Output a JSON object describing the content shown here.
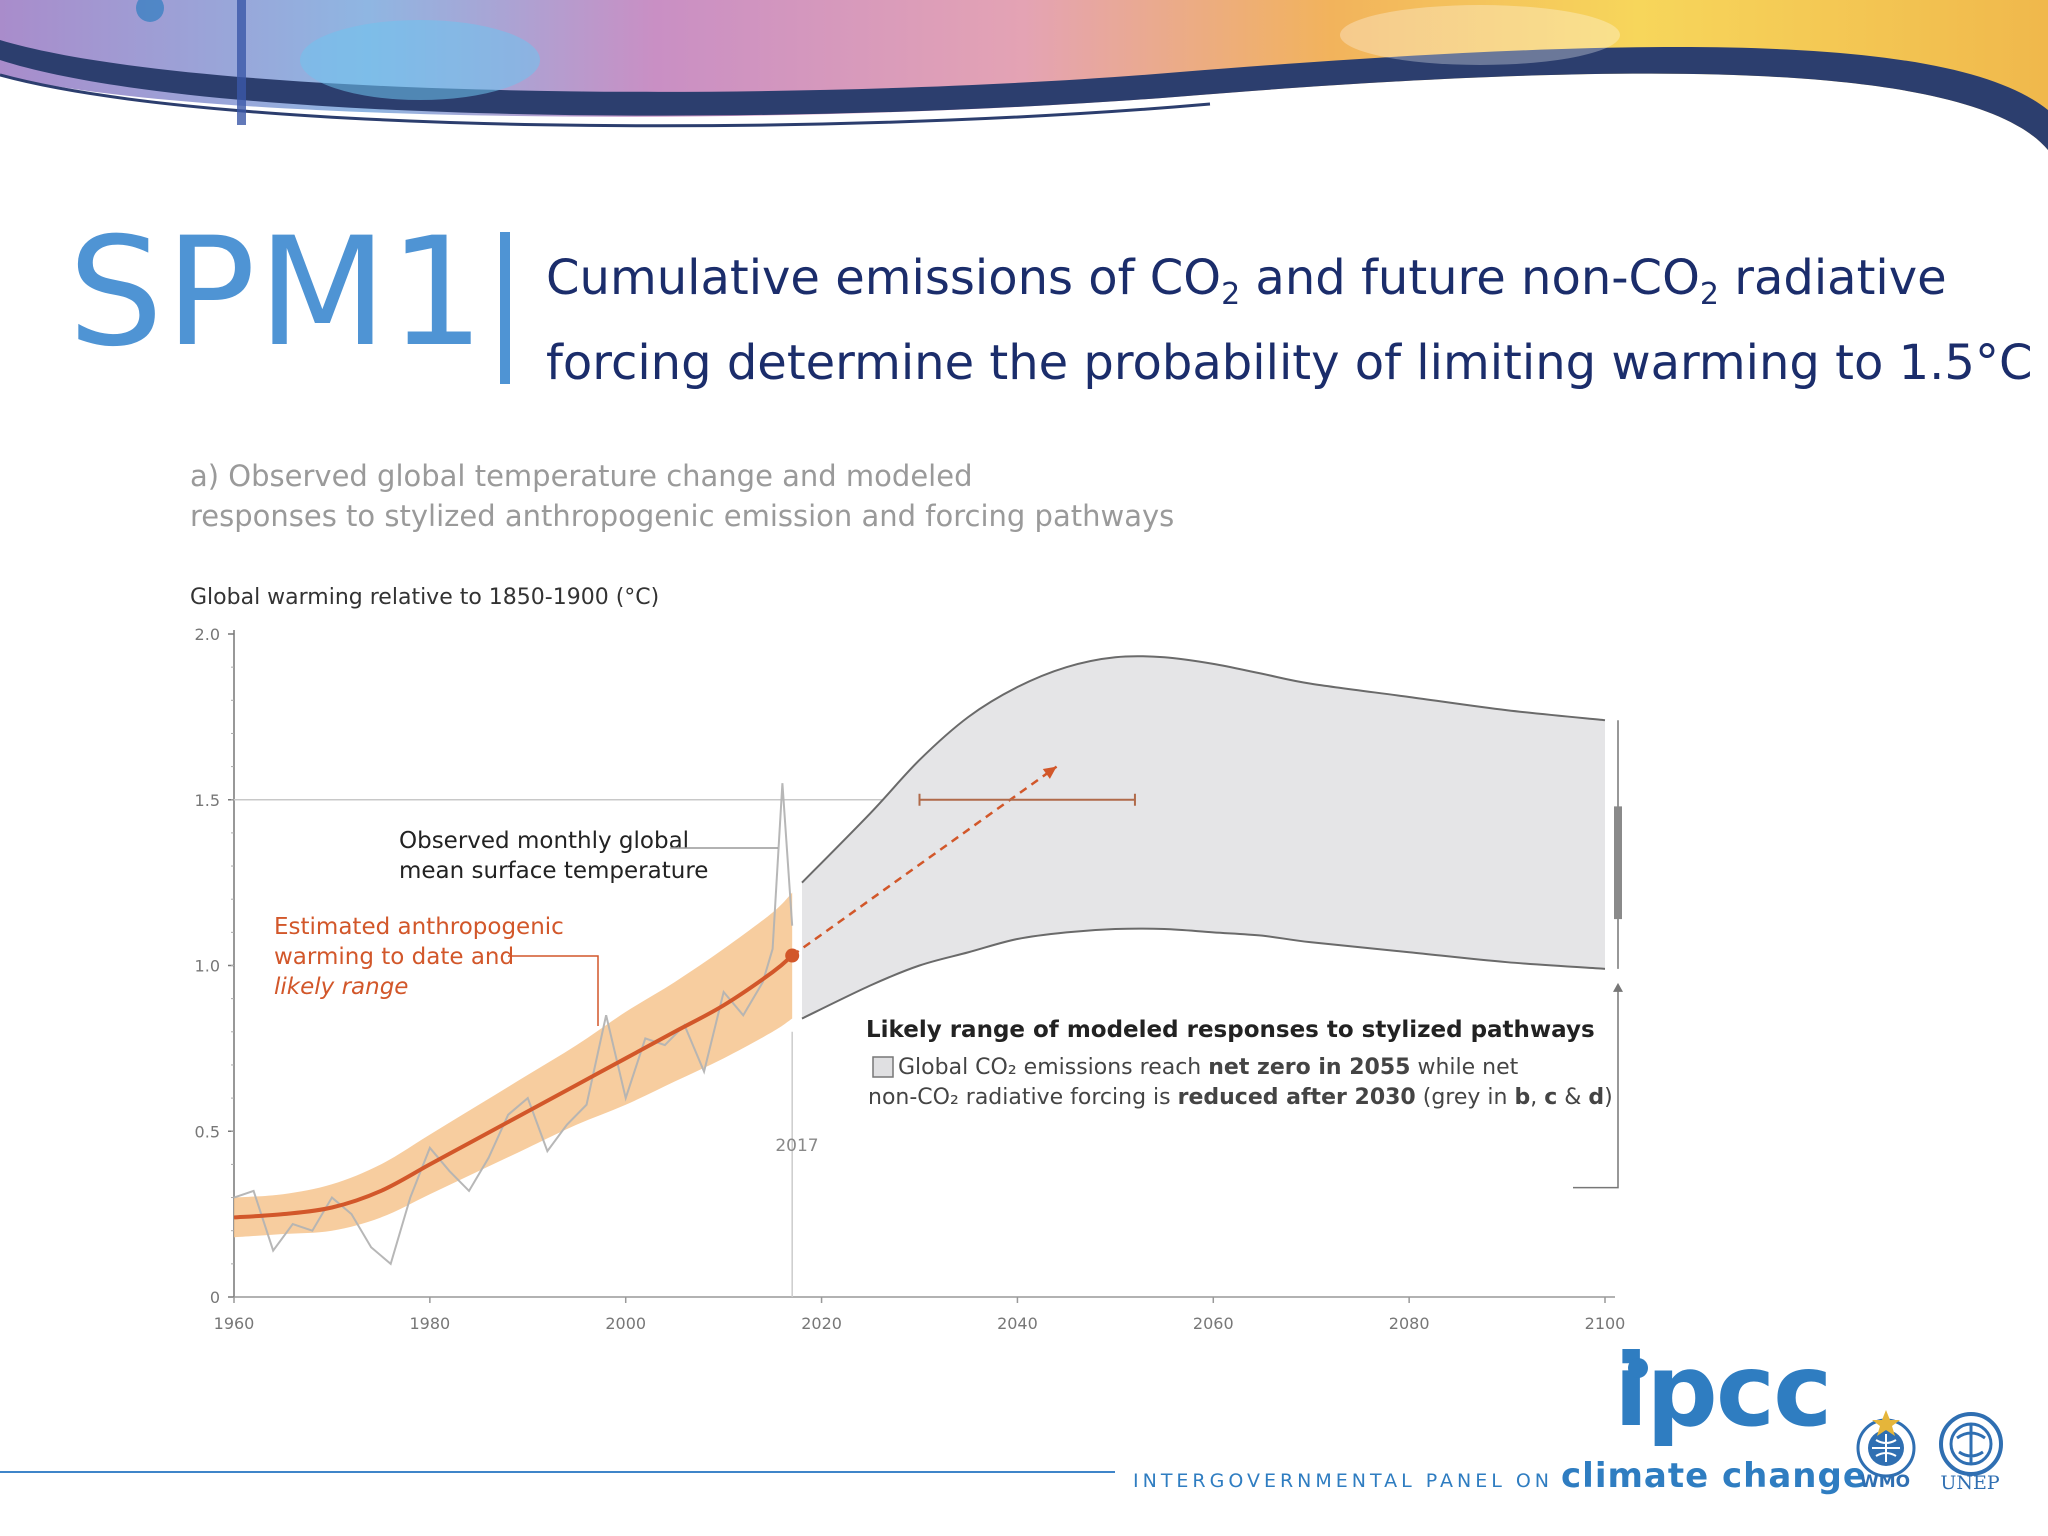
{
  "slide": {
    "code": "SPM1",
    "headline": {
      "line1_a": "Cumulative emissions of CO",
      "line1_sub1": "2",
      "line1_b": " and future non-CO",
      "line1_sub2": "2",
      "line1_c": " radiative",
      "line2": "forcing determine the probability of limiting warming to 1.5°C"
    }
  },
  "chart_data": {
    "type": "line",
    "panel_title": [
      "a) Observed global temperature change and modeled",
      "responses to stylized anthropogenic emission and forcing pathways"
    ],
    "ylabel": "Global warming relative to 1850-1900 (°C)",
    "xlabel": "",
    "xlim": [
      1960,
      2100
    ],
    "ylim": [
      0,
      2.0
    ],
    "x_ticks": [
      1960,
      1980,
      2000,
      2020,
      2040,
      2060,
      2080,
      2100
    ],
    "y_ticks": [
      {
        "value": 0,
        "label": "0"
      },
      {
        "value": 0.5,
        "label": "0.5"
      },
      {
        "value": 1.0,
        "label": "1.0"
      },
      {
        "value": 1.5,
        "label": "1.5"
      },
      {
        "value": 2.0,
        "label": "2.0"
      }
    ],
    "reference_line": 1.5,
    "present_year": 2017,
    "present_year_label": "2017",
    "colors": {
      "observed": "#b3b3b3",
      "anthropogenic": "#d2572a",
      "anthropogenic_band": "#f6c48e",
      "model_range_fill": "#e5e5e7",
      "model_range_edge": "#6a6a6a",
      "arrow": "#d2572a",
      "bracket": "#777777",
      "bar": "#8a8a8a"
    },
    "series": [
      {
        "name": "Estimated anthropogenic warming to date",
        "x": [
          1960,
          1965,
          1970,
          1975,
          1980,
          1985,
          1990,
          1995,
          2000,
          2005,
          2010,
          2015,
          2017
        ],
        "values": [
          0.24,
          0.25,
          0.27,
          0.32,
          0.4,
          0.48,
          0.56,
          0.64,
          0.72,
          0.8,
          0.88,
          0.98,
          1.03
        ],
        "lower": [
          0.18,
          0.19,
          0.2,
          0.24,
          0.31,
          0.38,
          0.45,
          0.52,
          0.58,
          0.65,
          0.72,
          0.8,
          0.84
        ],
        "upper": [
          0.3,
          0.31,
          0.34,
          0.4,
          0.49,
          0.58,
          0.67,
          0.76,
          0.86,
          0.95,
          1.05,
          1.16,
          1.22
        ]
      },
      {
        "name": "Observed monthly global mean surface temperature",
        "x": [
          1960,
          1962,
          1964,
          1966,
          1968,
          1970,
          1972,
          1974,
          1976,
          1978,
          1980,
          1982,
          1984,
          1986,
          1988,
          1990,
          1992,
          1994,
          1996,
          1998,
          2000,
          2002,
          2004,
          2006,
          2008,
          2010,
          2012,
          2014,
          2015,
          2016,
          2017
        ],
        "values": [
          0.3,
          0.32,
          0.14,
          0.22,
          0.2,
          0.3,
          0.25,
          0.15,
          0.1,
          0.3,
          0.45,
          0.38,
          0.32,
          0.42,
          0.55,
          0.6,
          0.44,
          0.52,
          0.58,
          0.85,
          0.6,
          0.78,
          0.76,
          0.82,
          0.68,
          0.92,
          0.85,
          0.95,
          1.05,
          1.55,
          1.12
        ]
      },
      {
        "name": "Likely range of modeled responses to stylized pathways",
        "x": [
          2018,
          2025,
          2030,
          2035,
          2040,
          2045,
          2050,
          2055,
          2060,
          2065,
          2070,
          2080,
          2090,
          2100
        ],
        "lower": [
          0.84,
          0.94,
          1.0,
          1.04,
          1.08,
          1.1,
          1.11,
          1.11,
          1.1,
          1.09,
          1.07,
          1.04,
          1.01,
          0.99
        ],
        "upper": [
          1.25,
          1.46,
          1.62,
          1.75,
          1.84,
          1.9,
          1.93,
          1.93,
          1.91,
          1.88,
          1.85,
          1.81,
          1.77,
          1.74
        ]
      }
    ],
    "projection_arrow": {
      "x": [
        2017,
        2044
      ],
      "values": [
        1.03,
        1.6
      ]
    },
    "net_zero_range": {
      "x": [
        2030,
        2052
      ],
      "value": 1.5
    },
    "bar_2100": {
      "low": 1.14,
      "high": 1.48
    },
    "bracket_2100": {
      "low": 0.99,
      "high": 1.74
    },
    "annotations": {
      "observed": [
        "Observed monthly global",
        "mean surface temperature"
      ],
      "anthropogenic": [
        "Estimated anthropogenic",
        "warming to date and",
        "likely range"
      ],
      "legend_title": "Likely range of modeled responses to stylized pathways",
      "legend_line1": {
        "a": "Global CO₂ emissions reach ",
        "b": "net zero in 2055",
        "c": " while net"
      },
      "legend_line2": {
        "a": "non-CO₂ radiative forcing is ",
        "b": "reduced after 2030",
        "c": " (grey in ",
        "d": "b",
        "e": ", ",
        "f": "c",
        "g": " & ",
        "h": "d",
        "i": ")"
      }
    }
  },
  "footer": {
    "ipcc_letters": "ipcc",
    "ipcc_panel": "INTERGOVERNMENTAL PANEL ON",
    "ipcc_climate_change": "climate change",
    "wmo_label": "WMO",
    "unep_label": "UNEP"
  }
}
